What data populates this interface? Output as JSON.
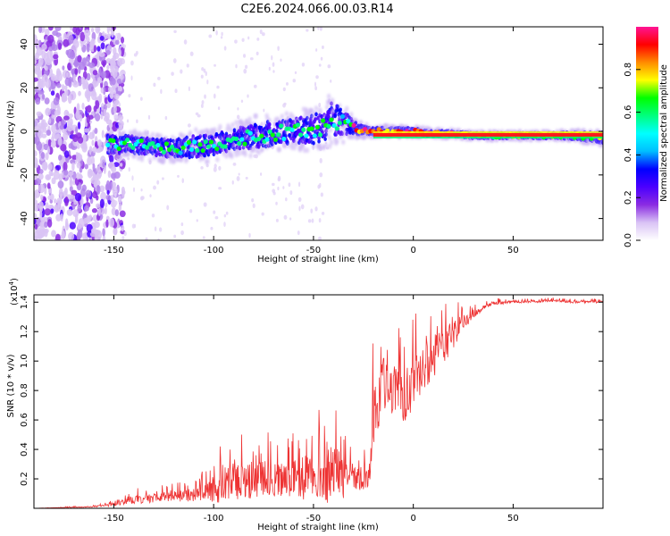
{
  "title": "C2E6.2024.066.00.03.R14",
  "chart_data": [
    {
      "type": "heatmap",
      "title": "C2E6.2024.066.00.03.R14",
      "xlabel": "Height of straight line (km)",
      "ylabel": "Frequency (Hz)",
      "xlim": [
        -190,
        95
      ],
      "ylim": [
        -50,
        48
      ],
      "xticks": [
        -150,
        -100,
        -50,
        0,
        50
      ],
      "yticks": [
        -40,
        -20,
        0,
        20,
        40
      ],
      "colorbar": {
        "label": "Normalized spectral amplitude",
        "range": [
          0.0,
          1.0
        ],
        "ticks": [
          0.0,
          0.2,
          0.4,
          0.6,
          0.8
        ],
        "colors": [
          "#ffffff",
          "#d9c3f5",
          "#8a2be2",
          "#4b00ff",
          "#0000ff",
          "#00bfff",
          "#00ffff",
          "#00ff7f",
          "#00ff00",
          "#ffff00",
          "#ff8c00",
          "#ff0000",
          "#ff1493"
        ]
      },
      "ridge": {
        "x": [
          -153,
          -140,
          -130,
          -120,
          -110,
          -100,
          -90,
          -80,
          -70,
          -60,
          -50,
          -45,
          -40,
          -35,
          -32,
          -28,
          -20,
          -10,
          0,
          10,
          20,
          30,
          50,
          70,
          80,
          95
        ],
        "frequency": [
          -6,
          -6,
          -7,
          -8,
          -7,
          -6,
          -4,
          -2,
          -1,
          0,
          1,
          3,
          6,
          4,
          3,
          1,
          0,
          0,
          0,
          -1,
          -1,
          -2,
          -2,
          -2,
          -2,
          -3
        ],
        "band_halfwidth": [
          5,
          5,
          5,
          5,
          6,
          6,
          6,
          7,
          7,
          7,
          8,
          9,
          10,
          7,
          5,
          3,
          2,
          2,
          2,
          1.5,
          1.5,
          1.5,
          1.5,
          1.5,
          2,
          3
        ]
      }
    },
    {
      "type": "line",
      "xlabel": "Height of straight line (km)",
      "ylabel": "SNR (10 * v/v)",
      "exponent_label": "(x10",
      "exponent": "4",
      "exponent_close": ")",
      "xlim": [
        -190,
        95
      ],
      "ylim": [
        0,
        1.45
      ],
      "xticks": [
        -150,
        -100,
        -50,
        0,
        50
      ],
      "yticks": [
        0.2,
        0.4,
        0.6,
        0.8,
        1.0,
        1.2,
        1.4
      ],
      "ytick_labels": [
        "0.2",
        "0.4",
        "0.6",
        "0.8",
        "1.0",
        "1.2",
        "1.4"
      ],
      "series": [
        {
          "name": "SNR",
          "color": "#ee3333",
          "x": [
            -190,
            -160,
            -150,
            -145,
            -140,
            -130,
            -120,
            -110,
            -100,
            -95,
            -90,
            -85,
            -80,
            -75,
            -70,
            -65,
            -60,
            -55,
            -50,
            -45,
            -40,
            -35,
            -30,
            -25,
            -22,
            -20,
            -15,
            -10,
            -5,
            0,
            5,
            10,
            15,
            20,
            25,
            30,
            35,
            40,
            50,
            60,
            70,
            80,
            95
          ],
          "baseline": [
            0.0,
            0.01,
            0.02,
            0.04,
            0.05,
            0.06,
            0.07,
            0.08,
            0.09,
            0.12,
            0.14,
            0.15,
            0.16,
            0.16,
            0.16,
            0.16,
            0.16,
            0.17,
            0.18,
            0.18,
            0.17,
            0.17,
            0.17,
            0.18,
            0.2,
            0.55,
            0.8,
            0.75,
            0.7,
            0.8,
            0.9,
            1.0,
            1.05,
            1.15,
            1.25,
            1.3,
            1.36,
            1.39,
            1.4,
            1.4,
            1.41,
            1.4,
            1.4
          ],
          "spread": [
            0.0,
            0.01,
            0.03,
            0.05,
            0.07,
            0.08,
            0.09,
            0.12,
            0.2,
            0.3,
            0.38,
            0.4,
            0.3,
            0.32,
            0.28,
            0.28,
            0.3,
            0.4,
            0.3,
            0.55,
            0.5,
            0.4,
            0.25,
            0.2,
            0.2,
            0.6,
            0.45,
            0.45,
            0.45,
            0.45,
            0.4,
            0.4,
            0.3,
            0.25,
            0.12,
            0.07,
            0.04,
            0.03,
            0.02,
            0.02,
            0.02,
            0.02,
            0.02
          ]
        }
      ]
    }
  ]
}
